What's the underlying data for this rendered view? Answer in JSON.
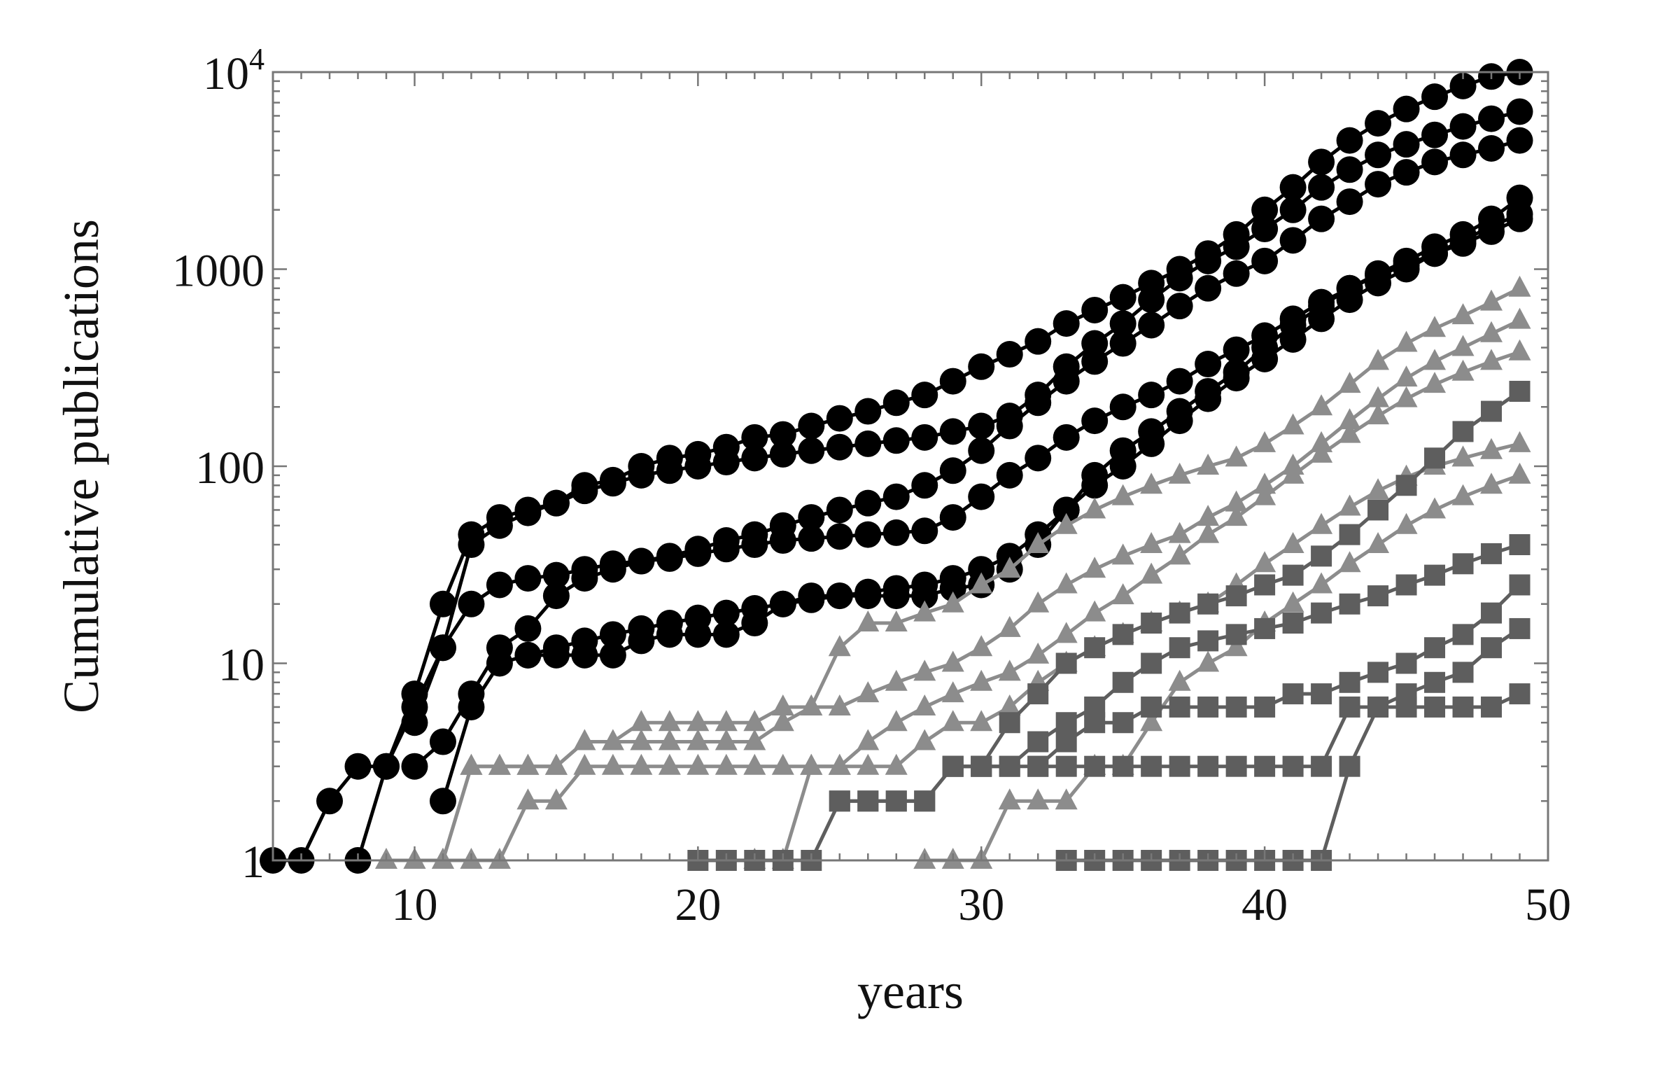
{
  "chart_data": {
    "type": "line",
    "xlabel": "years",
    "ylabel": "Cumulative publications",
    "xlim": [
      5,
      50
    ],
    "ylim": [
      1,
      10000
    ],
    "yscale": "log",
    "grid": false,
    "legend": "none",
    "x_ticks": [
      {
        "value": 10,
        "label": "10"
      },
      {
        "value": 20,
        "label": "20"
      },
      {
        "value": 30,
        "label": "30"
      },
      {
        "value": 40,
        "label": "40"
      },
      {
        "value": 50,
        "label": "50"
      }
    ],
    "y_ticks": [
      {
        "value": 1,
        "base": "1",
        "exp": ""
      },
      {
        "value": 10,
        "base": "10",
        "exp": ""
      },
      {
        "value": 100,
        "base": "100",
        "exp": ""
      },
      {
        "value": 1000,
        "base": "1000",
        "exp": ""
      },
      {
        "value": 10000,
        "base": "10",
        "exp": "4"
      }
    ],
    "colors": {
      "circle": "#000000",
      "triangle": "#8c8c8c",
      "square": "#5e5e5e"
    },
    "series": [
      {
        "marker": "circle",
        "x": [
          5,
          6,
          7,
          8,
          9,
          10,
          11,
          12,
          13,
          14,
          15,
          16,
          17,
          18,
          19,
          20,
          21,
          22,
          23,
          24,
          25,
          26,
          27,
          28,
          29,
          30,
          31,
          32,
          33,
          34,
          35,
          36,
          37,
          38,
          39,
          40,
          41,
          42,
          43,
          44,
          45,
          46,
          47,
          48,
          49
        ],
        "y": [
          1,
          1,
          2,
          3,
          3,
          7,
          20,
          45,
          55,
          60,
          65,
          80,
          85,
          100,
          110,
          115,
          125,
          140,
          145,
          160,
          175,
          190,
          210,
          230,
          270,
          320,
          370,
          430,
          530,
          620,
          720,
          850,
          1000,
          1200,
          1500,
          2000,
          2600,
          3500,
          4500,
          5500,
          6500,
          7500,
          8500,
          9500,
          10000
        ]
      },
      {
        "marker": "circle",
        "x": [
          8,
          9,
          10,
          11,
          12,
          13,
          14,
          15,
          16,
          17,
          18,
          19,
          20,
          21,
          22,
          23,
          24,
          25,
          26,
          27,
          28,
          29,
          30,
          31,
          32,
          33,
          34,
          35,
          36,
          37,
          38,
          39,
          40,
          41,
          42,
          43,
          44,
          45,
          46,
          47,
          48,
          49
        ],
        "y": [
          1,
          3,
          6,
          12,
          40,
          50,
          58,
          65,
          75,
          82,
          90,
          95,
          100,
          105,
          110,
          115,
          120,
          125,
          130,
          135,
          140,
          150,
          160,
          180,
          230,
          320,
          420,
          530,
          700,
          900,
          1100,
          1300,
          1600,
          2000,
          2600,
          3200,
          3800,
          4300,
          4800,
          5300,
          5800,
          6300
        ]
      },
      {
        "marker": "circle",
        "x": [
          10,
          11,
          12,
          13,
          14,
          15,
          16,
          17,
          18,
          19,
          20,
          21,
          22,
          23,
          24,
          25,
          26,
          27,
          28,
          29,
          30,
          31,
          32,
          33,
          34,
          35,
          36,
          37,
          38,
          39,
          40,
          41,
          42,
          43,
          44,
          45,
          46,
          47,
          48,
          49
        ],
        "y": [
          3,
          4,
          7,
          12,
          15,
          22,
          27,
          30,
          33,
          35,
          38,
          42,
          45,
          50,
          55,
          60,
          65,
          70,
          80,
          95,
          120,
          160,
          210,
          270,
          340,
          420,
          520,
          650,
          800,
          950,
          1100,
          1400,
          1800,
          2200,
          2700,
          3100,
          3500,
          3800,
          4100,
          4500
        ]
      },
      {
        "marker": "circle",
        "x": [
          10,
          11,
          12,
          13,
          14,
          15,
          16,
          17,
          18,
          19,
          20,
          21,
          22,
          23,
          24,
          25,
          26,
          27,
          28,
          29,
          30,
          31,
          32,
          33,
          34,
          35,
          36,
          37,
          38,
          39,
          40,
          41,
          42,
          43,
          44,
          45,
          46,
          47,
          48,
          49
        ],
        "y": [
          5,
          12,
          20,
          25,
          27,
          28,
          30,
          32,
          33,
          34,
          36,
          38,
          40,
          42,
          43,
          44,
          45,
          46,
          47,
          55,
          70,
          90,
          110,
          140,
          170,
          200,
          230,
          270,
          330,
          390,
          460,
          560,
          680,
          800,
          930,
          1050,
          1200,
          1350,
          1550,
          1800
        ]
      },
      {
        "marker": "circle",
        "x": [
          11,
          12,
          13,
          14,
          15,
          16,
          17,
          18,
          19,
          20,
          21,
          22,
          23,
          24,
          25,
          26,
          27,
          28,
          29,
          30,
          31,
          32,
          33,
          34,
          35,
          36,
          37,
          38,
          39,
          40,
          41,
          42,
          43,
          44,
          45,
          46,
          47,
          48,
          49
        ],
        "y": [
          2,
          6,
          10,
          11,
          12,
          13,
          14,
          15,
          16,
          17,
          18,
          19,
          20,
          21,
          22,
          23,
          24,
          25,
          27,
          30,
          35,
          45,
          60,
          80,
          100,
          130,
          170,
          220,
          280,
          350,
          440,
          560,
          700,
          850,
          1000,
          1200,
          1400,
          1650,
          1900
        ]
      },
      {
        "marker": "circle",
        "x": [
          14,
          15,
          16,
          17,
          18,
          19,
          20,
          21,
          22,
          23,
          24,
          25,
          26,
          27,
          28,
          29,
          30,
          31,
          32,
          33,
          34,
          35,
          36,
          37,
          38,
          39,
          40,
          41,
          42,
          43,
          44,
          45,
          46,
          47,
          48,
          49
        ],
        "y": [
          11,
          11,
          11,
          11,
          13,
          14,
          14,
          14,
          16,
          20,
          22,
          22,
          22,
          22,
          22,
          24,
          25,
          30,
          40,
          60,
          90,
          120,
          150,
          190,
          240,
          300,
          400,
          520,
          650,
          800,
          950,
          1100,
          1300,
          1500,
          1800,
          2300
        ]
      },
      {
        "marker": "triangle",
        "x": [
          9,
          10,
          11,
          12,
          13,
          14,
          15,
          16,
          17,
          18,
          19,
          20,
          21,
          22,
          23,
          24,
          25,
          26,
          27,
          28,
          29,
          30,
          31,
          32,
          33,
          34,
          35,
          36,
          37,
          38,
          39,
          40,
          41,
          42,
          43,
          44,
          45,
          46,
          47,
          48,
          49
        ],
        "y": [
          1,
          1,
          1,
          3,
          3,
          3,
          3,
          4,
          4,
          5,
          5,
          5,
          5,
          5,
          6,
          6,
          12,
          16,
          16,
          18,
          20,
          25,
          30,
          40,
          50,
          60,
          70,
          80,
          90,
          100,
          110,
          130,
          160,
          200,
          260,
          340,
          420,
          500,
          580,
          680,
          800
        ]
      },
      {
        "marker": "triangle",
        "x": [
          10,
          11,
          12,
          13,
          14,
          15,
          16,
          17,
          18,
          19,
          20,
          21,
          22,
          23,
          24,
          25,
          26,
          27,
          28,
          29,
          30,
          31,
          32,
          33,
          34,
          35,
          36,
          37,
          38,
          39,
          40,
          41,
          42,
          43,
          44,
          45,
          46,
          47,
          48,
          49
        ],
        "y": [
          1,
          1,
          3,
          3,
          3,
          3,
          4,
          4,
          4,
          4,
          4,
          4,
          4,
          5,
          6,
          6,
          7,
          8,
          9,
          10,
          12,
          15,
          20,
          25,
          30,
          35,
          40,
          45,
          55,
          65,
          80,
          100,
          130,
          170,
          220,
          280,
          340,
          400,
          470,
          550
        ]
      },
      {
        "marker": "triangle",
        "x": [
          11,
          12,
          13,
          14,
          15,
          16,
          17,
          18,
          19,
          20,
          21,
          22,
          23,
          24,
          25,
          26,
          27,
          28,
          29,
          30,
          31,
          32,
          33,
          34,
          35,
          36,
          37,
          38,
          39,
          40,
          41,
          42,
          43,
          44,
          45,
          46,
          47,
          48,
          49
        ],
        "y": [
          1,
          1,
          1,
          2,
          2,
          3,
          3,
          3,
          3,
          3,
          3,
          3,
          3,
          3,
          3,
          4,
          5,
          6,
          7,
          8,
          9,
          11,
          14,
          18,
          22,
          28,
          35,
          45,
          55,
          70,
          90,
          115,
          145,
          180,
          220,
          260,
          300,
          340,
          380
        ]
      },
      {
        "marker": "triangle",
        "x": [
          22,
          23,
          24,
          25,
          26,
          27,
          28,
          29,
          30,
          31,
          32,
          33,
          34,
          35,
          36,
          37,
          38,
          39,
          40,
          41,
          42,
          43,
          44,
          45,
          46,
          47,
          48,
          49
        ],
        "y": [
          1,
          1,
          3,
          3,
          3,
          3,
          4,
          5,
          5,
          6,
          8,
          10,
          12,
          14,
          16,
          18,
          20,
          25,
          32,
          40,
          50,
          62,
          75,
          88,
          100,
          110,
          120,
          130
        ]
      },
      {
        "marker": "triangle",
        "x": [
          28,
          29,
          30,
          31,
          32,
          33,
          34,
          35,
          36,
          37,
          38,
          39,
          40,
          41,
          42,
          43,
          44,
          45,
          46,
          47,
          48,
          49
        ],
        "y": [
          1,
          1,
          1,
          2,
          2,
          2,
          3,
          3,
          5,
          8,
          10,
          12,
          16,
          20,
          25,
          32,
          40,
          50,
          60,
          70,
          80,
          90
        ]
      },
      {
        "marker": "square",
        "x": [
          20,
          21,
          22,
          23,
          24,
          25,
          26,
          27,
          28,
          29,
          30,
          31,
          32,
          33,
          34,
          35,
          36,
          37,
          38,
          39,
          40,
          41,
          42,
          43,
          44,
          45,
          46,
          47,
          48,
          49
        ],
        "y": [
          1,
          1,
          1,
          1,
          1,
          2,
          2,
          2,
          2,
          3,
          3,
          5,
          7,
          10,
          12,
          14,
          16,
          18,
          20,
          22,
          25,
          28,
          35,
          45,
          60,
          80,
          110,
          150,
          190,
          240
        ]
      },
      {
        "marker": "square",
        "x": [
          25,
          26,
          27,
          28,
          29,
          30,
          31,
          32,
          33,
          34,
          35,
          36,
          37,
          38,
          39,
          40,
          41,
          42,
          43,
          44,
          45,
          46,
          47,
          48,
          49
        ],
        "y": [
          2,
          2,
          2,
          2,
          3,
          3,
          3,
          4,
          5,
          6,
          8,
          10,
          12,
          13,
          14,
          15,
          16,
          18,
          20,
          22,
          25,
          28,
          32,
          36,
          40
        ]
      },
      {
        "marker": "square",
        "x": [
          29,
          30,
          31,
          32,
          33,
          34,
          35,
          36,
          37,
          38,
          39,
          40,
          41,
          42,
          43,
          44,
          45,
          46,
          47,
          48,
          49
        ],
        "y": [
          3,
          3,
          3,
          3,
          4,
          5,
          5,
          6,
          6,
          6,
          6,
          6,
          7,
          7,
          8,
          9,
          10,
          12,
          14,
          18,
          25
        ]
      },
      {
        "marker": "square",
        "x": [
          32,
          33,
          34,
          35,
          36,
          37,
          38,
          39,
          40,
          41,
          42,
          43,
          44,
          45,
          46,
          47,
          48,
          49
        ],
        "y": [
          3,
          3,
          3,
          3,
          3,
          3,
          3,
          3,
          3,
          3,
          3,
          6,
          6,
          7,
          8,
          9,
          12,
          15
        ]
      },
      {
        "marker": "square",
        "x": [
          33,
          34,
          35,
          36,
          37,
          38,
          39,
          40,
          41,
          42,
          43,
          44,
          45,
          46,
          47,
          48,
          49
        ],
        "y": [
          1,
          1,
          1,
          1,
          1,
          1,
          1,
          1,
          1,
          1,
          3,
          6,
          6,
          6,
          6,
          6,
          7
        ]
      }
    ]
  }
}
